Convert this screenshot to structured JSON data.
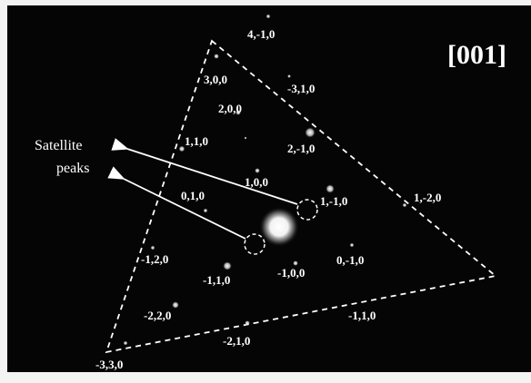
{
  "image": {
    "zone_axis": "[001]",
    "annotation_line1": "Satellite",
    "annotation_line2": "peaks",
    "spot_labels": [
      "4,-1,0",
      "3,0,0",
      "-3,1,0",
      "2,0,0",
      "1,1,0",
      "2,-1,0",
      "1,0,0",
      "0,1,0",
      "1,-1,0",
      "1,-2,0",
      "-1,2,0",
      "-1,1,0",
      "-1,0,0",
      "0,-1,0",
      "-2,2,0",
      "-1,1,0",
      "-2,1,0",
      "-3,3,0"
    ],
    "colors": {
      "background": "#000000",
      "foreground": "#ffffff",
      "border": "#f3f3f3"
    }
  }
}
